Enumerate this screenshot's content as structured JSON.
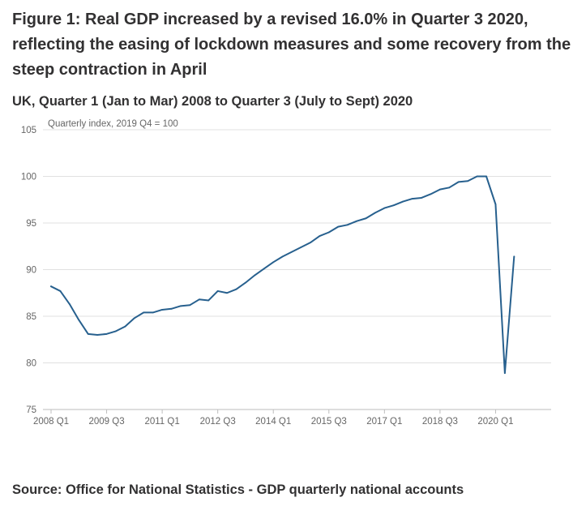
{
  "title": "Figure 1: Real GDP increased by a revised 16.0% in Quarter 3 2020, reflecting the easing of lockdown measures and some recovery from the steep contraction in April",
  "subtitle": "UK, Quarter 1 (Jan to Mar) 2008 to Quarter 3 (July to Sept) 2020",
  "source": "Source: Office for National Statistics - GDP quarterly national accounts",
  "colors": {
    "line": "#27608e",
    "grid": "#e0e0e0",
    "axis": "#bdbdbd",
    "text": "#323132",
    "tick_text": "#666666"
  },
  "chart_data": {
    "type": "line",
    "title": "Figure 1: Real GDP increased by a revised 16.0% in Quarter 3 2020, reflecting the easing of lockdown measures and some recovery from the steep contraction in April",
    "subtitle": "UK, Quarter 1 (Jan to Mar) 2008 to Quarter 3 (July to Sept) 2020",
    "ylabel": "Quarterly index, 2019 Q4 = 100",
    "xlabel": "",
    "ylim": [
      75,
      105
    ],
    "yticks": [
      75,
      80,
      85,
      90,
      95,
      100,
      105
    ],
    "grid": true,
    "xtick_labels": [
      "2008 Q1",
      "2009 Q3",
      "2011 Q1",
      "2012 Q3",
      "2014 Q1",
      "2015 Q3",
      "2017 Q1",
      "2018 Q3",
      "2020 Q1"
    ],
    "xtick_indices": [
      0,
      6,
      12,
      18,
      24,
      30,
      36,
      42,
      48
    ],
    "series": [
      {
        "name": "Real GDP",
        "values": [
          88.2,
          87.7,
          86.3,
          84.6,
          83.1,
          83.0,
          83.1,
          83.4,
          83.9,
          84.8,
          85.4,
          85.4,
          85.7,
          85.8,
          86.1,
          86.2,
          86.8,
          86.7,
          87.7,
          87.5,
          87.9,
          88.6,
          89.4,
          90.1,
          90.8,
          91.4,
          91.9,
          92.4,
          92.9,
          93.6,
          94.0,
          94.6,
          94.8,
          95.2,
          95.5,
          96.1,
          96.6,
          96.9,
          97.3,
          97.6,
          97.7,
          98.1,
          98.6,
          98.8,
          99.4,
          99.5,
          100.0,
          100.0,
          97.0,
          78.9,
          91.4
        ]
      }
    ]
  }
}
